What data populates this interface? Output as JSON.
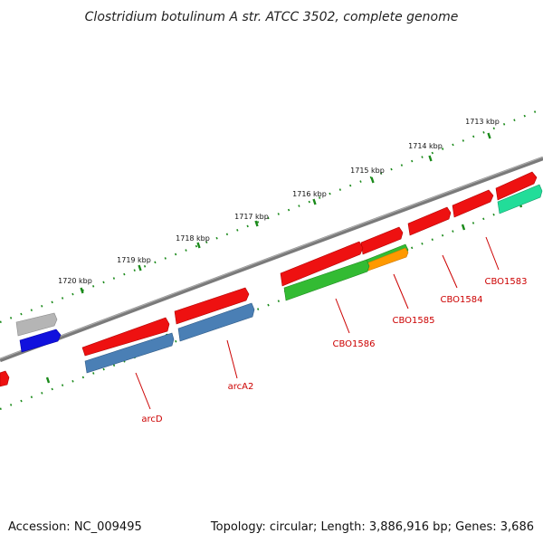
{
  "title": "Clostridium botulinum A str. ATCC 3502, complete genome",
  "footer": {
    "accession": "Accession: NC_009495",
    "topology": "Topology: circular; Length: 3,886,916 bp; Genes: 3,686"
  },
  "scale_labels": [
    "1713 kbp",
    "1714 kbp",
    "1715 kbp",
    "1716 kbp",
    "1717 kbp",
    "1718 kbp",
    "1719 kbp",
    "1720 kbp"
  ],
  "gene_labels": [
    "CBO1583",
    "CBO1584",
    "CBO1585",
    "CBO1586",
    "arcA2",
    "arcD"
  ],
  "colors": {
    "backbone": "#7a7a7a",
    "cds": "#ee1111",
    "steel": "#4a7fb5",
    "green": "#33bb33",
    "orange": "#ff9900",
    "aqua": "#22dd99",
    "blue": "#1111dd",
    "gray": "#b5b5b5",
    "ticks": "#1a8a1a",
    "label": "#cc0000"
  }
}
